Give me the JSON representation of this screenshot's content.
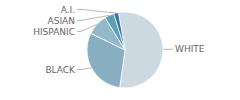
{
  "chart_data": {
    "type": "pie",
    "categories": [
      "WHITE",
      "BLACK",
      "HISPANIC",
      "ASIAN",
      "A.I."
    ],
    "values": [
      55,
      30,
      9,
      4,
      2
    ],
    "colors": [
      "#ccd9e0",
      "#88afc0",
      "#93b8c8",
      "#5e9fb5",
      "#2e7a9e"
    ]
  }
}
